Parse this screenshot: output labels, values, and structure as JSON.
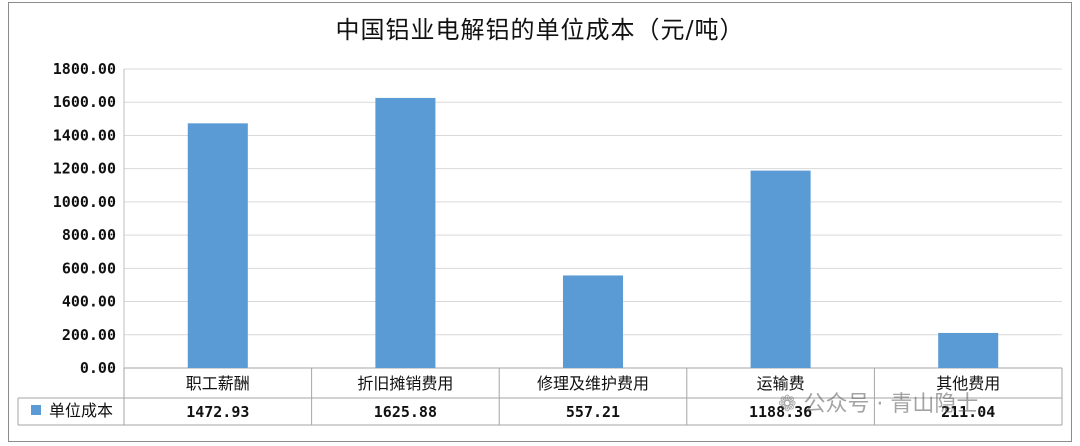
{
  "chart_data": {
    "type": "bar",
    "title": "中国铝业电解铝的单位成本（元/吨）",
    "categories": [
      "职工薪酬",
      "折旧摊销费用",
      "修理及维护费用",
      "运输费",
      "其他费用"
    ],
    "series": [
      {
        "name": "单位成本",
        "values": [
          1472.93,
          1625.88,
          557.21,
          1188.36,
          211.04
        ],
        "value_labels": [
          "1472.93",
          "1625.88",
          "557.21",
          "1188.36",
          "211.04"
        ],
        "color": "#5b9bd5"
      }
    ],
    "ylim": [
      0,
      1800
    ],
    "yticks": [
      "0.00",
      "200.00",
      "400.00",
      "600.00",
      "800.00",
      "1000.00",
      "1200.00",
      "1400.00",
      "1600.00",
      "1800.00"
    ],
    "grid": true,
    "legend": "data-table-left"
  },
  "watermark": "公众号 · 青山隐士"
}
